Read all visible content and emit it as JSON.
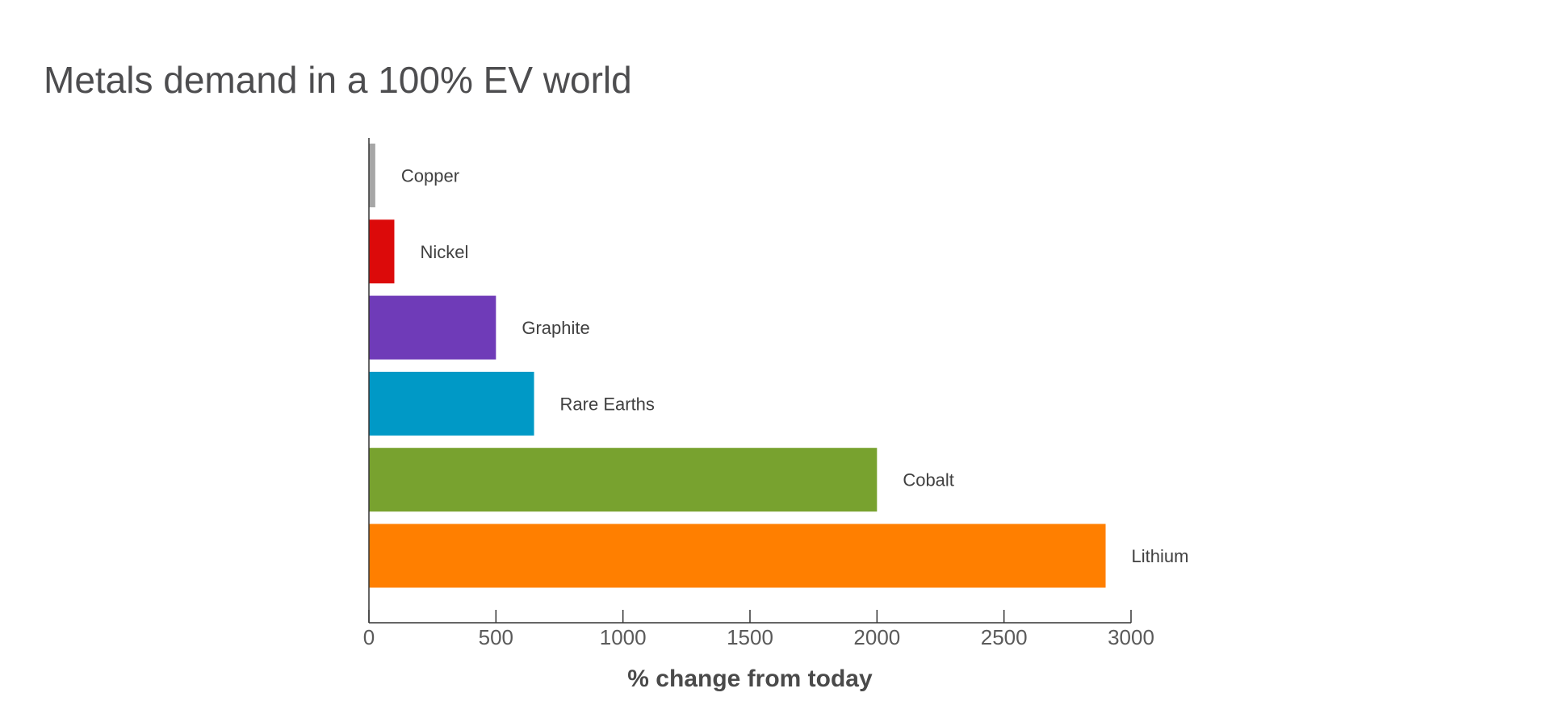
{
  "chart_data": {
    "type": "bar",
    "orientation": "horizontal",
    "title": "Metals demand in a 100% EV world",
    "xlabel": "% change from today",
    "ylabel": "",
    "xlim": [
      0,
      3000
    ],
    "xticks": [
      0,
      500,
      1000,
      1500,
      2000,
      2500,
      3000
    ],
    "grid": false,
    "legend": "none",
    "categories": [
      "Copper",
      "Nickel",
      "Graphite",
      "Rare Earths",
      "Cobalt",
      "Lithium"
    ],
    "values": [
      25,
      100,
      500,
      650,
      2000,
      2900
    ],
    "colors": [
      "#a6a6a6",
      "#dc0a0a",
      "#6f3bb8",
      "#0099c6",
      "#78a22f",
      "#ff7f00"
    ]
  }
}
